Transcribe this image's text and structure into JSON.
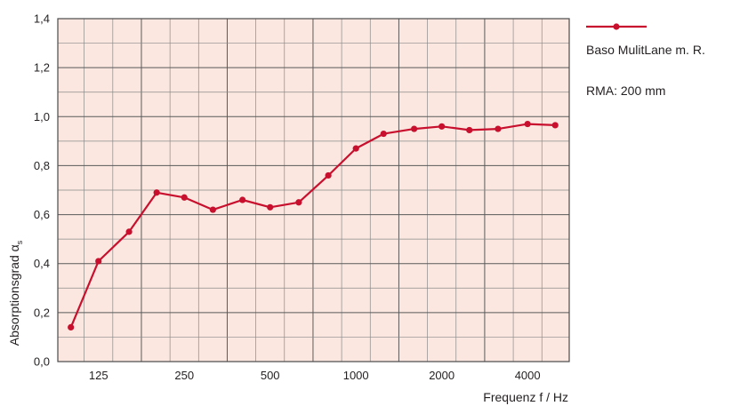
{
  "chart_data": {
    "type": "line",
    "xlabel": "Frequenz f / Hz",
    "ylabel": "Absorptionsgrad α",
    "ylabel_sub": "s",
    "x_scale": "log (1/3-octave bands)",
    "x_ticks": [
      "125",
      "250",
      "500",
      "1000",
      "2000",
      "4000"
    ],
    "x_tick_values": [
      125,
      250,
      500,
      1000,
      2000,
      4000
    ],
    "ylim": [
      0,
      1.4
    ],
    "y_ticks": [
      "0,0",
      "0,2",
      "0,4",
      "0,6",
      "0,8",
      "1,0",
      "1,2",
      "1,4"
    ],
    "y_tick_values": [
      0,
      0.2,
      0.4,
      0.6,
      0.8,
      1.0,
      1.2,
      1.4
    ],
    "grid": true,
    "legend_position": "right",
    "series": [
      {
        "name": "Baso MulitLane m. R.",
        "color": "#c8102e",
        "x": [
          100,
          125,
          160,
          200,
          250,
          315,
          400,
          500,
          630,
          800,
          1000,
          1250,
          1600,
          2000,
          2500,
          3150,
          4000,
          5000
        ],
        "values": [
          0.14,
          0.41,
          0.53,
          0.69,
          0.67,
          0.62,
          0.66,
          0.63,
          0.65,
          0.76,
          0.87,
          0.93,
          0.95,
          0.96,
          0.945,
          0.95,
          0.97,
          0.965
        ]
      }
    ],
    "annotations": [
      "RMA: 200 mm"
    ],
    "colors": {
      "plot_background": "#fbe7df",
      "major_grid": "#5a5a5a",
      "minor_grid": "#8a8a8a",
      "line": "#c8102e"
    }
  }
}
